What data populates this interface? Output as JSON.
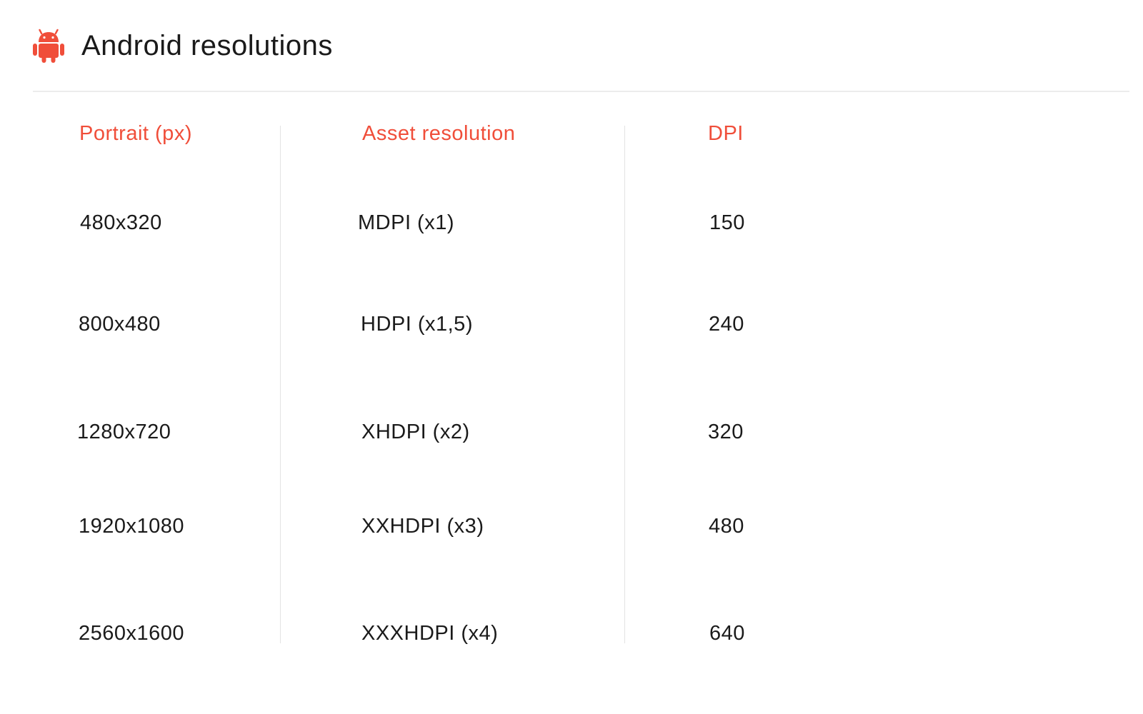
{
  "header": {
    "icon": "android-icon",
    "title": "Android resolutions",
    "accent_color": "#f04e3a"
  },
  "table": {
    "columns": [
      "Portrait (px)",
      "Asset resolution",
      "DPI"
    ],
    "rows": [
      [
        "480x320",
        "MDPI (x1)",
        "150"
      ],
      [
        "800x480",
        "HDPI (x1,5)",
        "240"
      ],
      [
        "1280x720",
        "XHDPI (x2)",
        "320"
      ],
      [
        "1920x1080",
        "XXHDPI (x3)",
        "480"
      ],
      [
        "2560x1600",
        "XXXHDPI (x4)",
        "640"
      ]
    ]
  }
}
